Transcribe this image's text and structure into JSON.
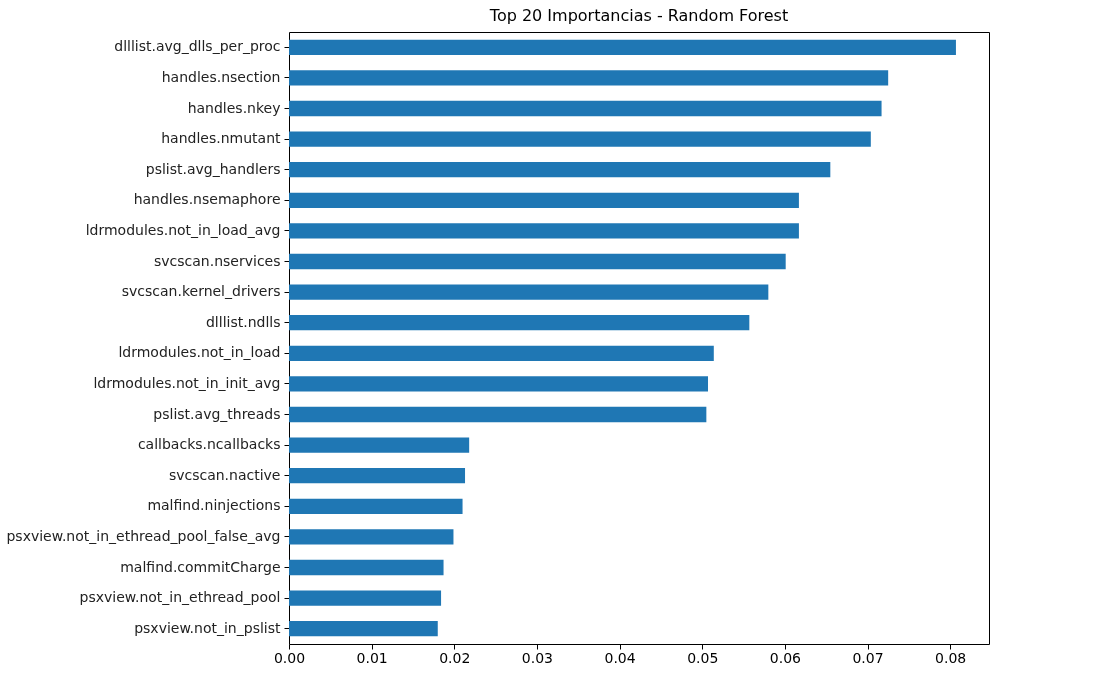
{
  "chart_data": {
    "type": "bar",
    "orientation": "horizontal",
    "title": "Top 20 Importancias - Random Forest",
    "categories": [
      "dlllist.avg_dlls_per_proc",
      "handles.nsection",
      "handles.nkey",
      "handles.nmutant",
      "pslist.avg_handlers",
      "handles.nsemaphore",
      "ldrmodules.not_in_load_avg",
      "svcscan.nservices",
      "svcscan.kernel_drivers",
      "dlllist.ndlls",
      "ldrmodules.not_in_load",
      "ldrmodules.not_in_init_avg",
      "pslist.avg_threads",
      "callbacks.ncallbacks",
      "svcscan.nactive",
      "malfind.ninjections",
      "psxview.not_in_ethread_pool_false_avg",
      "malfind.commitCharge",
      "psxview.not_in_ethread_pool",
      "psxview.not_in_pslist"
    ],
    "values": [
      0.0807,
      0.0725,
      0.0717,
      0.0704,
      0.0655,
      0.0617,
      0.0617,
      0.0601,
      0.058,
      0.0557,
      0.0514,
      0.0507,
      0.0505,
      0.0218,
      0.0213,
      0.021,
      0.0199,
      0.0187,
      0.0184,
      0.018
    ],
    "color": "#1f77b4",
    "xlim": [
      0,
      0.0847
    ],
    "xticks": [
      {
        "value": 0,
        "label": "0.00"
      },
      {
        "value": 0.01,
        "label": "0.01"
      },
      {
        "value": 0.02,
        "label": "0.02"
      },
      {
        "value": 0.03,
        "label": "0.03"
      },
      {
        "value": 0.04,
        "label": "0.04"
      },
      {
        "value": 0.05,
        "label": "0.05"
      },
      {
        "value": 0.06,
        "label": "0.06"
      },
      {
        "value": 0.07,
        "label": "0.07"
      },
      {
        "value": 0.08,
        "label": "0.08"
      }
    ],
    "grid": false
  }
}
